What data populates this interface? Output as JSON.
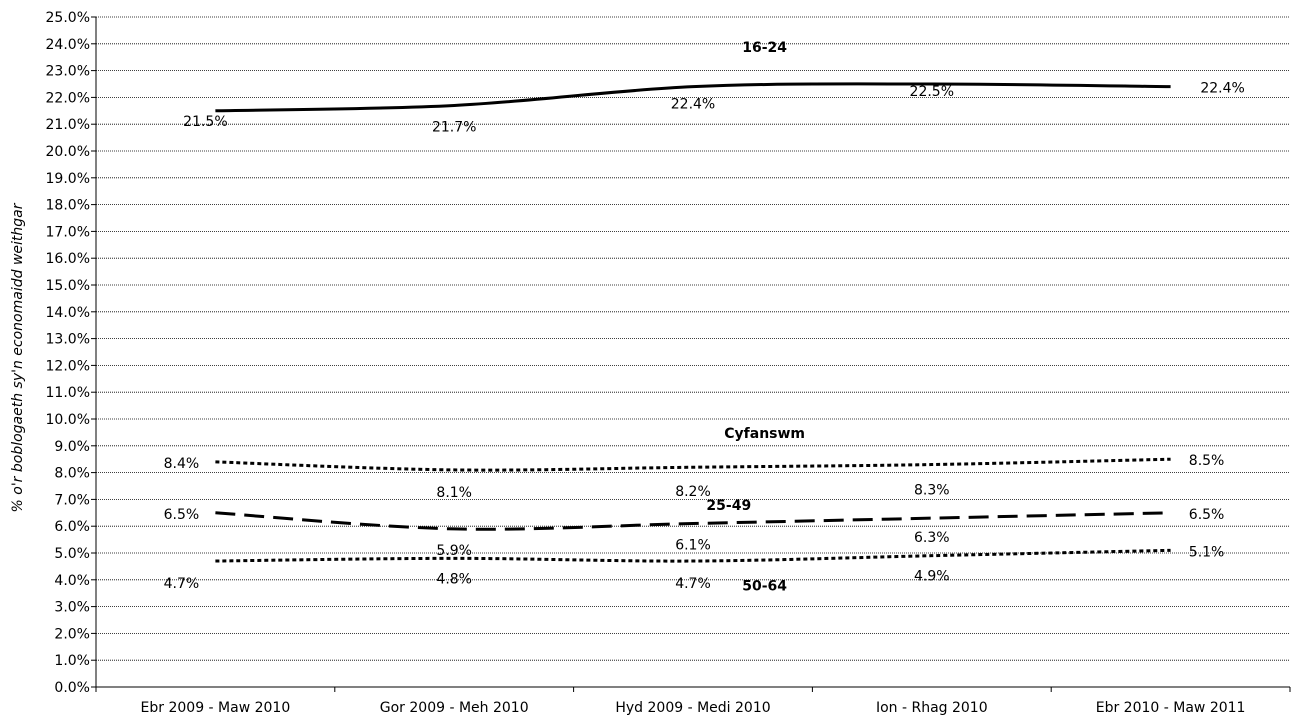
{
  "chart_data": {
    "type": "line",
    "title": "",
    "xlabel": "",
    "ylabel": "% o'r boblogaeth sy'n economaidd  weithgar",
    "categories": [
      "Ebr 2009 - Maw 2010",
      "Gor 2009 - Meh 2010",
      "Hyd 2009 - Medi 2010",
      "Ion - Rhag 2010",
      "Ebr 2010 - Maw 2011"
    ],
    "y_ticks": [
      "0.0%",
      "1.0%",
      "2.0%",
      "3.0%",
      "4.0%",
      "5.0%",
      "6.0%",
      "7.0%",
      "8.0%",
      "9.0%",
      "10.0%",
      "11.0%",
      "12.0%",
      "13.0%",
      "14.0%",
      "15.0%",
      "16.0%",
      "17.0%",
      "18.0%",
      "19.0%",
      "20.0%",
      "21.0%",
      "22.0%",
      "23.0%",
      "24.0%",
      "25.0%"
    ],
    "ylim": [
      0,
      25
    ],
    "grid": true,
    "series": [
      {
        "name": "16-24",
        "values": [
          21.5,
          21.7,
          22.4,
          22.5,
          22.4
        ],
        "labels": [
          "21.5%",
          "21.7%",
          "22.4%",
          "22.5%",
          "22.4%"
        ],
        "style": "solid",
        "color": "#000000"
      },
      {
        "name": "Cyfanswm",
        "values": [
          8.4,
          8.1,
          8.2,
          8.3,
          8.5
        ],
        "labels": [
          "8.4%",
          "8.1%",
          "8.2%",
          "8.3%",
          "8.5%"
        ],
        "style": "dotted",
        "color": "#000000"
      },
      {
        "name": "25-49",
        "values": [
          6.5,
          5.9,
          6.1,
          6.3,
          6.5
        ],
        "labels": [
          "6.5%",
          "5.9%",
          "6.1%",
          "6.3%",
          "6.5%"
        ],
        "style": "dashed",
        "color": "#000000"
      },
      {
        "name": "50-64",
        "values": [
          4.7,
          4.8,
          4.7,
          4.9,
          5.1
        ],
        "labels": [
          "4.7%",
          "4.8%",
          "4.7%",
          "4.9%",
          "5.1%"
        ],
        "style": "dotted",
        "color": "#000000"
      }
    ]
  }
}
